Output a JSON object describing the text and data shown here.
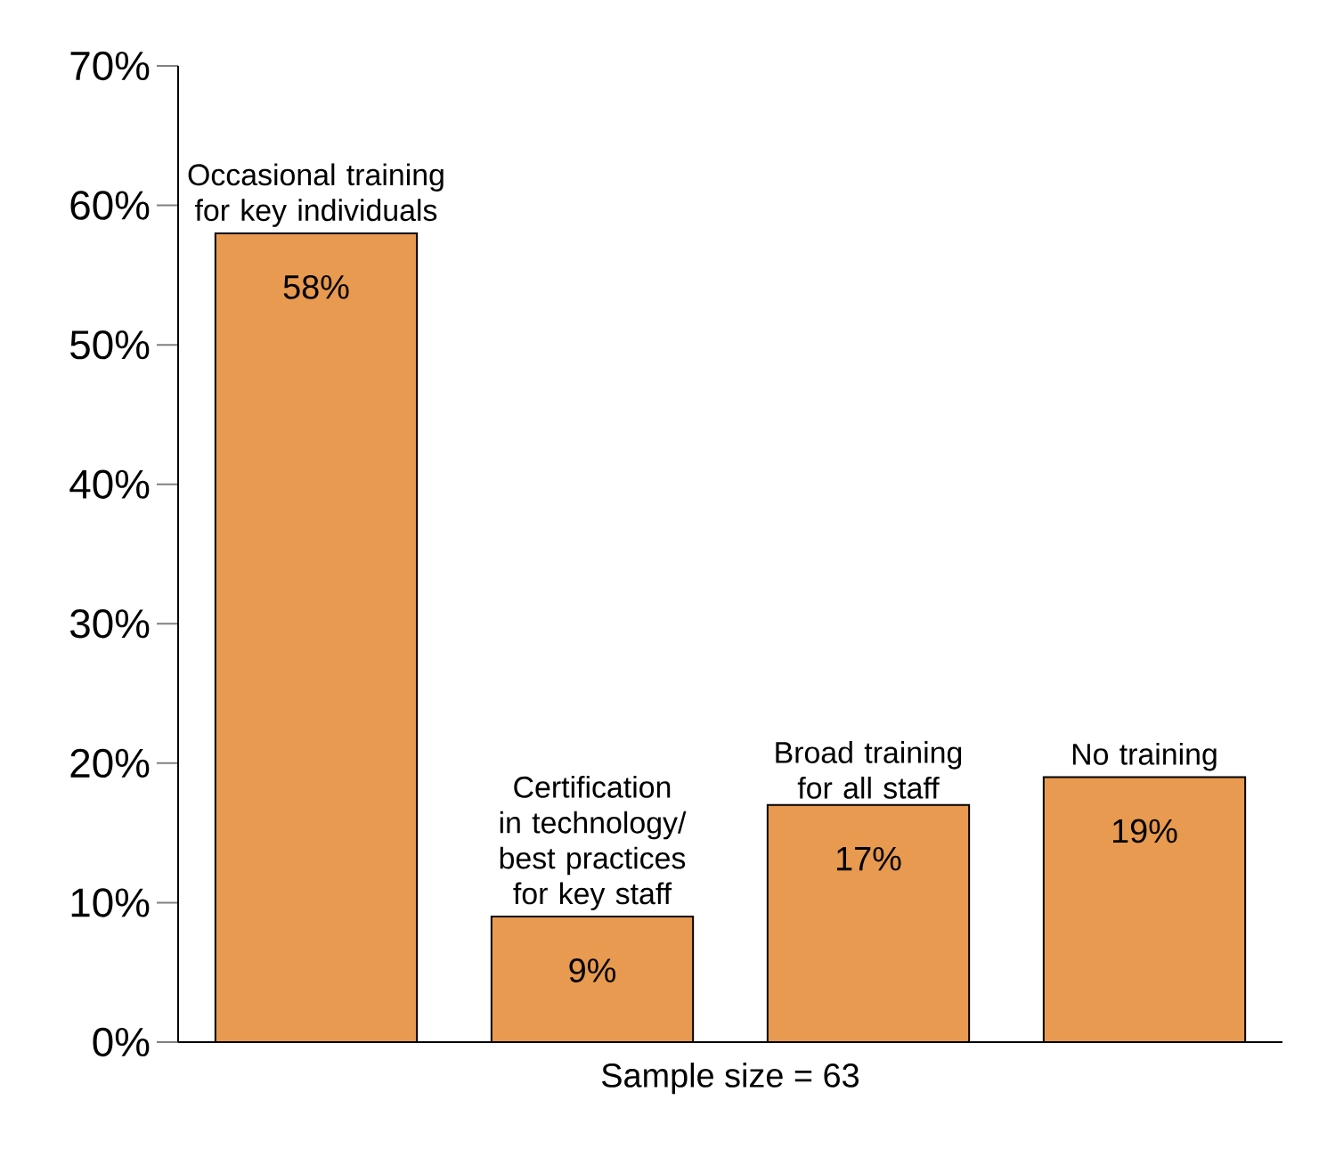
{
  "chart_data": {
    "type": "bar",
    "xlabel": "Sample size = 63",
    "categories": [
      "Occasional training for key individuals",
      "Certification in technology/ best practices for key staff",
      "Broad training for all staff",
      "No training"
    ],
    "values": [
      58,
      9,
      17,
      19
    ],
    "value_labels": [
      "58%",
      "9%",
      "17%",
      "19%"
    ],
    "color": "#e89a50",
    "ylim": [
      0,
      70
    ],
    "yticks": [
      {
        "value": 0,
        "label": "0%"
      },
      {
        "value": 10,
        "label": "10%"
      },
      {
        "value": 20,
        "label": "20%"
      },
      {
        "value": 30,
        "label": "30%"
      },
      {
        "value": 40,
        "label": "40%"
      },
      {
        "value": 50,
        "label": "50%"
      },
      {
        "value": 60,
        "label": "60%"
      },
      {
        "value": 70,
        "label": "70%"
      }
    ],
    "grid": false
  }
}
